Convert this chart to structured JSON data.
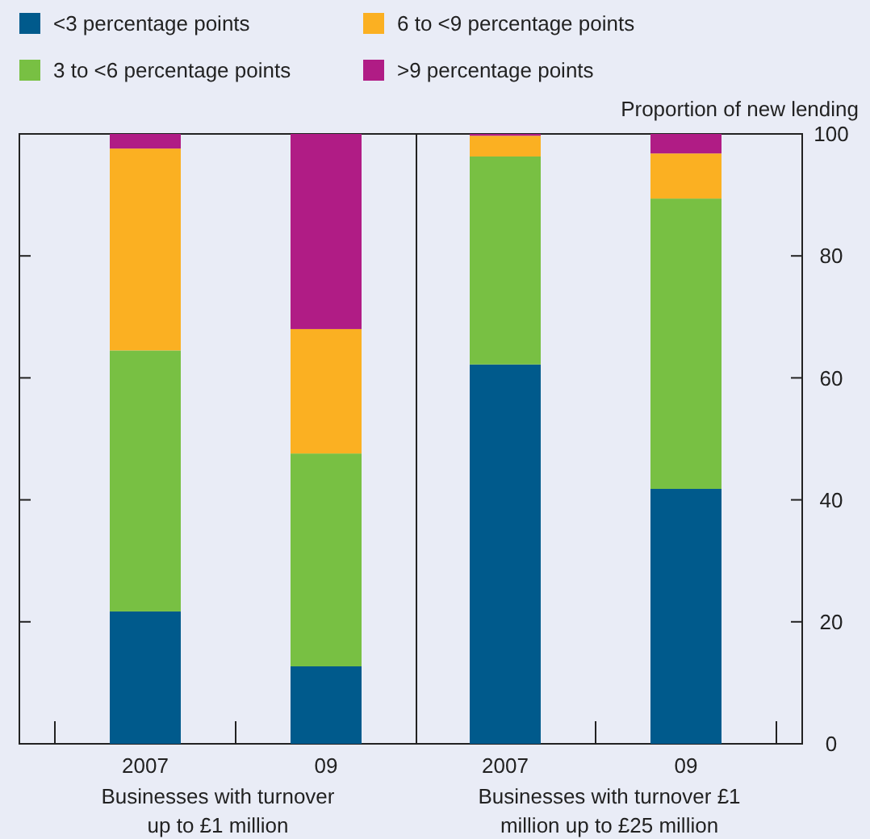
{
  "chart_data": [
    {
      "type": "bar",
      "stacked": true,
      "categories": [
        "2007",
        "09"
      ],
      "xlabel": "Businesses with turnover up to £1 million",
      "ylim": [
        0,
        100
      ],
      "yticks": [
        0,
        20,
        40,
        60,
        80,
        100
      ],
      "tick_labels": "x",
      "legend": "top",
      "series": [
        {
          "name": "<3 percentage points",
          "color": "#005a8c",
          "values": [
            21.7,
            12.7
          ]
        },
        {
          "name": "3 to <6 percentage points",
          "color": "#78c043",
          "values": [
            42.8,
            34.9
          ]
        },
        {
          "name": "6 to <9 percentage points",
          "color": "#fbb022",
          "values": [
            33.1,
            20.4
          ]
        },
        {
          "name": ">9 percentage points",
          "color": "#b01c85",
          "values": [
            2.4,
            32.0
          ]
        }
      ]
    },
    {
      "type": "bar",
      "stacked": true,
      "categories": [
        "2007",
        "09"
      ],
      "xlabel": "Businesses with turnover £1 million up to £25 million",
      "ylabel": "Proportion of new lending",
      "ylim": [
        0,
        100
      ],
      "yticks": [
        0,
        20,
        40,
        60,
        80,
        100
      ],
      "series": [
        {
          "color": "#005a8c",
          "values": [
            62.2,
            41.8
          ]
        },
        {
          "color": "#78c043",
          "values": [
            34.1,
            47.6
          ]
        },
        {
          "color": "#fbb022",
          "values": [
            3.4,
            7.4
          ]
        },
        {
          "color": "#b01c85",
          "values": [
            0.3,
            3.2
          ]
        }
      ]
    }
  ]
}
